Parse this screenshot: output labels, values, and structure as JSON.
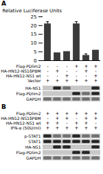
{
  "chart_data": [
    {
      "type": "bar",
      "title": "A",
      "categories": [
        null,
        null,
        null,
        null,
        null,
        null
      ],
      "values": [
        21.0,
        4.5,
        5.2,
        21.0,
        3.0,
        6.0
      ],
      "error": [
        1.2,
        0.0,
        0.0,
        1.2,
        0.8,
        0.0
      ],
      "color": "#3a3a3a",
      "ylabel": "Relative Luciferase Units",
      "ylim": [
        0,
        25
      ],
      "yticks": [
        0,
        5,
        10,
        15,
        20,
        25
      ],
      "tick_labels": "y"
    },
    {
      "type": "table",
      "rows": [
        {
          "name": "Flag-PDlim2",
          "values": [
            "-",
            "-",
            "-",
            "+",
            "+",
            "+"
          ]
        },
        {
          "name": "HA-HN12-NS1δPBM",
          "values": [
            "-",
            "+",
            "-",
            "-",
            "+",
            "-"
          ]
        },
        {
          "name": "HA-HN12-NS1 wt",
          "values": [
            "-",
            "-",
            "+",
            "-",
            "-",
            "+"
          ]
        },
        {
          "name": "Vector",
          "values": [
            "+",
            "+",
            "+",
            "+",
            "+",
            "+"
          ]
        }
      ]
    },
    {
      "type": "blot",
      "colors": [
        "#c8c8c8",
        "#707070",
        "#252525"
      ],
      "series": [
        {
          "name": "HA-NS1",
          "values": [
            0,
            2,
            1,
            0,
            0,
            2
          ]
        },
        {
          "name": "Flag-PDlim2",
          "values": [
            0,
            0,
            0,
            2,
            1,
            2
          ]
        },
        {
          "name": "GAPDH",
          "values": [
            1,
            1,
            1,
            1,
            1,
            1
          ]
        }
      ]
    },
    {
      "type": "table",
      "title": "B",
      "rows": [
        {
          "name": "Flag-PDlim2",
          "values": [
            "+",
            "+",
            "+",
            "+",
            "+",
            "+"
          ]
        },
        {
          "name": "HA-HN12-NS1δPBM",
          "values": [
            "-",
            "+",
            "+",
            "-",
            "+",
            "+"
          ]
        },
        {
          "name": "HA-HN12-NS1 wt",
          "values": [
            "+",
            "+",
            "-",
            "+",
            "+",
            "-"
          ]
        },
        {
          "name": "IFN-α (50U/ml)",
          "values": [
            "+",
            "+",
            "+",
            "+",
            "+",
            "+"
          ]
        }
      ]
    },
    {
      "type": "blot",
      "colors": [
        "#c8c8c8",
        "#707070",
        "#252525"
      ],
      "series": [
        {
          "name": "p-STAT1",
          "values": [
            2,
            1,
            1,
            2,
            1,
            1
          ]
        },
        {
          "name": "STAT1",
          "values": [
            2,
            2,
            2,
            2,
            2,
            2
          ]
        },
        {
          "name": "HA-NS1",
          "values": [
            0,
            2,
            2,
            0,
            0,
            2
          ]
        },
        {
          "name": "Flag-PDlim2",
          "values": [
            0,
            0,
            0,
            2,
            2,
            0
          ]
        },
        {
          "name": "GAPDH",
          "values": [
            1,
            1,
            1,
            1,
            1,
            1
          ]
        }
      ]
    }
  ]
}
